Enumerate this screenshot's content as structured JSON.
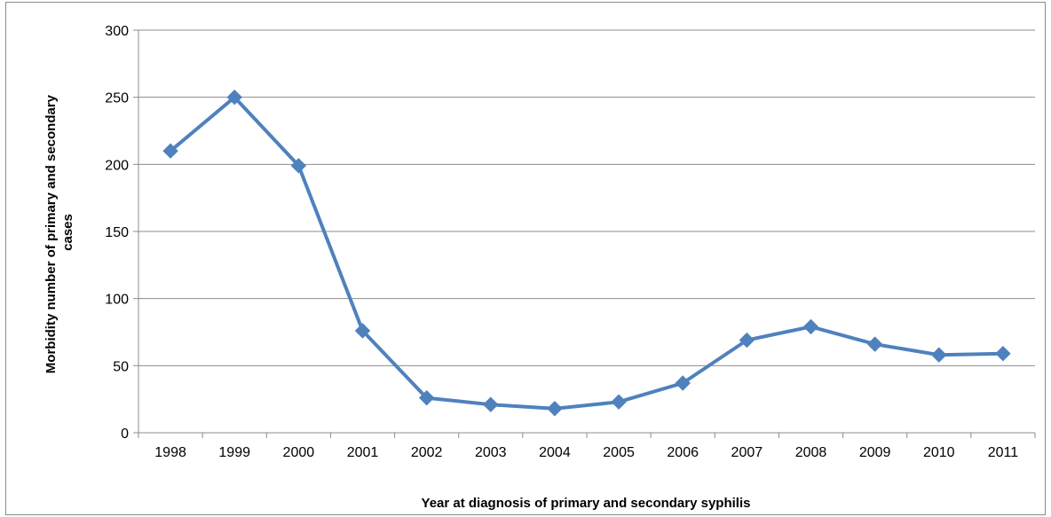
{
  "chart_data": {
    "type": "line",
    "title": "",
    "xlabel": "Year at diagnosis  of primary and secondary syphilis",
    "ylabel_lines": [
      "Morbidity number of primary and secondary",
      "cases"
    ],
    "categories": [
      "1998",
      "1999",
      "2000",
      "2001",
      "2002",
      "2003",
      "2004",
      "2005",
      "2006",
      "2007",
      "2008",
      "2009",
      "2010",
      "2011"
    ],
    "series": [
      {
        "values": [
          210,
          250,
          199,
          76,
          26,
          21,
          18,
          23,
          37,
          69,
          79,
          66,
          58,
          59
        ],
        "color": "#4F81BD"
      }
    ],
    "y_ticks": [
      0,
      50,
      100,
      150,
      200,
      250,
      300
    ],
    "ylim": [
      0,
      300
    ],
    "grid": true,
    "legend": "none",
    "gridline_color": "#8c8c8c",
    "axis_color": "#8c8c8c"
  }
}
